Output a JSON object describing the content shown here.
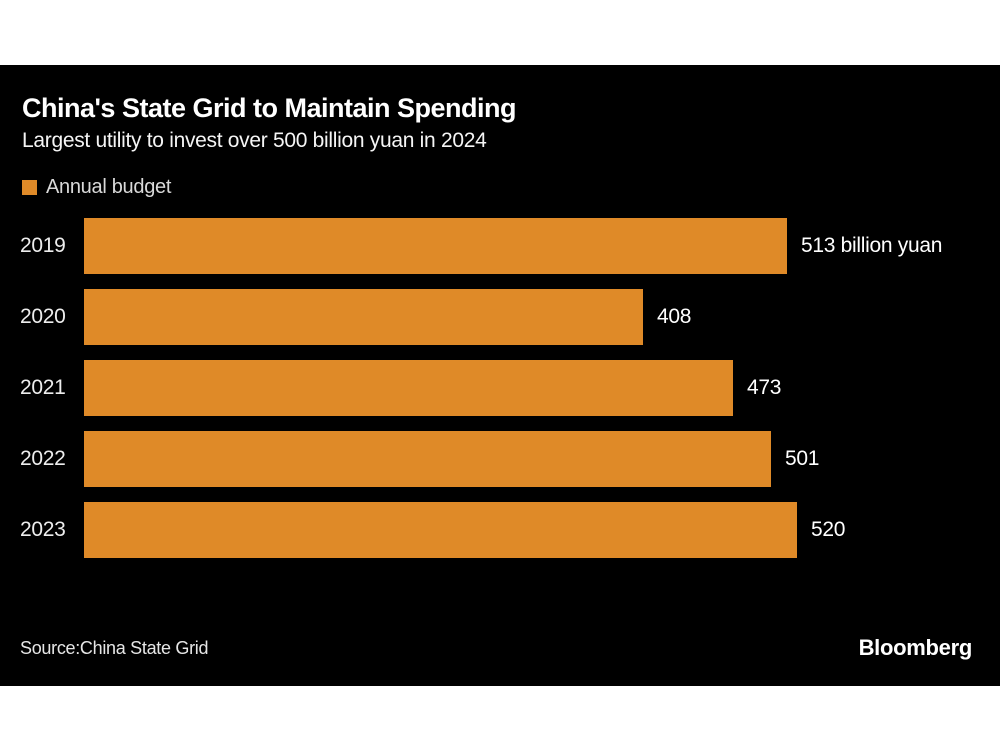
{
  "header": {
    "title": "China's State Grid to Maintain Spending",
    "subtitle": "Largest utility to invest over 500 billion yuan in 2024"
  },
  "legend": {
    "label": "Annual budget",
    "swatch_color": "#DF8A28"
  },
  "chart_data": {
    "type": "bar",
    "orientation": "horizontal",
    "title": "China's State Grid to Maintain Spending",
    "subtitle": "Largest utility to invest over 500 billion yuan in 2024",
    "series_name": "Annual budget",
    "categories": [
      "2019",
      "2020",
      "2021",
      "2022",
      "2023"
    ],
    "values": [
      513,
      408,
      473,
      501,
      520
    ],
    "value_labels": [
      "513 billion yuan",
      "408",
      "473",
      "501",
      "520"
    ],
    "unit": "billion yuan",
    "bar_color": "#DF8A28",
    "axis": "none",
    "grid": false,
    "legend_position": "top-left"
  },
  "footer": {
    "source": "Source:China State Grid",
    "brand": "Bloomberg"
  },
  "colors": {
    "page_bg": "#FFFFFF",
    "panel_bg": "#000000",
    "bar": "#DF8A28",
    "text": "#FFFFFF",
    "muted_text": "#D9D9D9"
  }
}
